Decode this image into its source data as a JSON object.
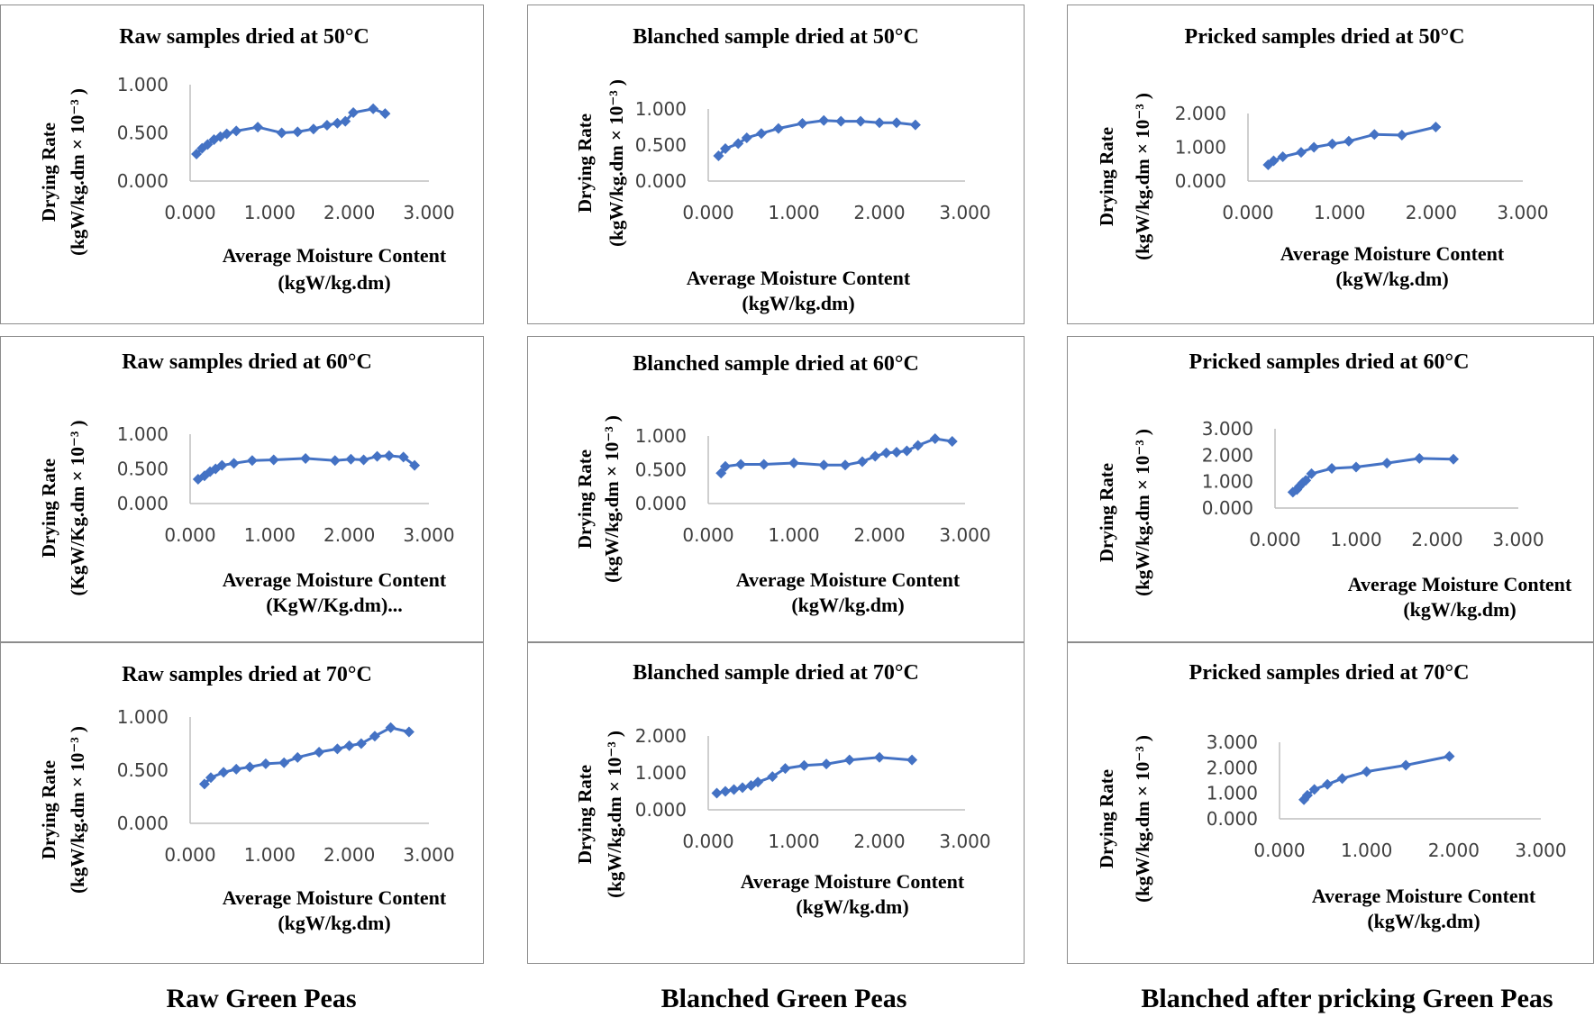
{
  "colors": {
    "series": "#4472c4",
    "axis": "#bfbfbf",
    "text": "#404040"
  },
  "footer": {
    "col1": "Raw Green Peas",
    "col2": "Blanched Green Peas",
    "col3": "Blanched after pricking Green Peas"
  },
  "chart_data": [
    {
      "type": "line",
      "title": "Raw samples dried at 50°C",
      "xlabel": [
        "Average Moisture Content",
        "(kgW/kg.dm)"
      ],
      "ylabel": [
        "Drying Rate",
        "(kgW/kg.dm × 10⁻³ )"
      ],
      "xticks": [
        "0.000",
        "1.000",
        "2.000",
        "3.000"
      ],
      "yticks": [
        "0.000",
        "0.500",
        "1.000"
      ],
      "xlim": [
        0,
        3
      ],
      "ylim": [
        0,
        1
      ],
      "x": [
        0.08,
        0.15,
        0.22,
        0.3,
        0.38,
        0.46,
        0.58,
        0.85,
        1.15,
        1.35,
        1.55,
        1.72,
        1.85,
        1.95,
        2.05,
        2.3,
        2.45
      ],
      "y": [
        0.28,
        0.34,
        0.38,
        0.43,
        0.46,
        0.49,
        0.52,
        0.56,
        0.5,
        0.51,
        0.54,
        0.58,
        0.6,
        0.62,
        0.71,
        0.75,
        0.7
      ]
    },
    {
      "type": "line",
      "title": "Blanched sample dried at 50°C",
      "xlabel": [
        "Average Moisture Content",
        "(kgW/kg.dm)"
      ],
      "ylabel": [
        "Drying Rate",
        "(kgW/kg.dm × 10⁻³ )"
      ],
      "xticks": [
        "0.000",
        "1.000",
        "2.000",
        "3.000"
      ],
      "yticks": [
        "0.000",
        "0.500",
        "1.000"
      ],
      "xlim": [
        0,
        3
      ],
      "ylim": [
        0,
        1
      ],
      "x": [
        0.12,
        0.2,
        0.35,
        0.45,
        0.62,
        0.82,
        1.1,
        1.35,
        1.55,
        1.78,
        2.0,
        2.2,
        2.42
      ],
      "y": [
        0.35,
        0.45,
        0.52,
        0.6,
        0.66,
        0.73,
        0.8,
        0.84,
        0.83,
        0.83,
        0.81,
        0.81,
        0.78
      ]
    },
    {
      "type": "line",
      "title": "Pricked samples dried at 50°C",
      "xlabel": [
        "Average Moisture Content",
        "(kgW/kg.dm)"
      ],
      "ylabel": [
        "Drying Rate",
        "(kgW/kg.dm × 10⁻³ )"
      ],
      "xticks": [
        "0.000",
        "1.000",
        "2.000",
        "3.000"
      ],
      "yticks": [
        "0.000",
        "1.000",
        "2.000"
      ],
      "xlim": [
        0,
        3
      ],
      "ylim": [
        0,
        2
      ],
      "x": [
        0.22,
        0.28,
        0.38,
        0.58,
        0.72,
        0.92,
        1.1,
        1.38,
        1.68,
        2.05
      ],
      "y": [
        0.48,
        0.6,
        0.72,
        0.85,
        1.0,
        1.1,
        1.18,
        1.38,
        1.36,
        1.6
      ]
    },
    {
      "type": "line",
      "title": "Raw samples dried at 60°C",
      "xlabel": [
        "Average Moisture Content",
        "(KgW/Kg.dm)..."
      ],
      "ylabel": [
        "Drying Rate",
        "(KgW/Kg.dm × 10⁻³ )"
      ],
      "xticks": [
        "0.000",
        "1.000",
        "2.000",
        "3.000"
      ],
      "yticks": [
        "0.000",
        "0.500",
        "1.000"
      ],
      "xlim": [
        0,
        3
      ],
      "ylim": [
        0,
        1
      ],
      "x": [
        0.1,
        0.18,
        0.25,
        0.32,
        0.4,
        0.55,
        0.78,
        1.05,
        1.45,
        1.82,
        2.02,
        2.18,
        2.35,
        2.5,
        2.68,
        2.82
      ],
      "y": [
        0.35,
        0.4,
        0.46,
        0.5,
        0.55,
        0.58,
        0.62,
        0.63,
        0.65,
        0.62,
        0.64,
        0.63,
        0.68,
        0.69,
        0.67,
        0.55
      ]
    },
    {
      "type": "line",
      "title": "Blanched sample dried at 60°C",
      "xlabel": [
        "Average Moisture Content",
        "(kgW/kg.dm)"
      ],
      "ylabel": [
        "Drying Rate",
        "(kgW/kg.dm × 10⁻³ )"
      ],
      "xticks": [
        "0.000",
        "1.000",
        "2.000",
        "3.000"
      ],
      "yticks": [
        "0.000",
        "0.500",
        "1.000"
      ],
      "xlim": [
        0,
        3
      ],
      "ylim": [
        0,
        1
      ],
      "x": [
        0.15,
        0.2,
        0.38,
        0.65,
        1.0,
        1.35,
        1.6,
        1.8,
        1.95,
        2.08,
        2.2,
        2.32,
        2.45,
        2.65,
        2.85
      ],
      "y": [
        0.45,
        0.55,
        0.58,
        0.58,
        0.6,
        0.57,
        0.57,
        0.62,
        0.7,
        0.75,
        0.76,
        0.78,
        0.86,
        0.96,
        0.92
      ]
    },
    {
      "type": "line",
      "title": "Pricked samples dried at 60°C",
      "xlabel": [
        "Average Moisture Content",
        "(kgW/kg.dm)"
      ],
      "ylabel": [
        "Drying Rate",
        "(kgW/kg.dm × 10⁻³ )"
      ],
      "xticks": [
        "0.000",
        "1.000",
        "2.000",
        "3.000"
      ],
      "yticks": [
        "0.000",
        "1.000",
        "2.000",
        "3.000"
      ],
      "xlim": [
        0,
        3
      ],
      "ylim": [
        0,
        3
      ],
      "x": [
        0.22,
        0.27,
        0.3,
        0.34,
        0.38,
        0.45,
        0.7,
        1.0,
        1.38,
        1.78,
        2.2
      ],
      "y": [
        0.6,
        0.7,
        0.82,
        0.95,
        1.05,
        1.3,
        1.5,
        1.55,
        1.7,
        1.88,
        1.85
      ]
    },
    {
      "type": "line",
      "title": "Raw samples dried at 70°C",
      "xlabel": [
        "Average Moisture Content",
        "(kgW/kg.dm)"
      ],
      "ylabel": [
        "Drying Rate",
        "(kgW/kg.dm × 10⁻³ )"
      ],
      "xticks": [
        "0.000",
        "1.000",
        "2.000",
        "3.000"
      ],
      "yticks": [
        "0.000",
        "0.500",
        "1.000"
      ],
      "xlim": [
        0,
        3
      ],
      "ylim": [
        0,
        1
      ],
      "x": [
        0.18,
        0.26,
        0.42,
        0.58,
        0.75,
        0.95,
        1.18,
        1.35,
        1.62,
        1.85,
        2.0,
        2.15,
        2.32,
        2.52,
        2.75
      ],
      "y": [
        0.37,
        0.43,
        0.48,
        0.51,
        0.53,
        0.56,
        0.57,
        0.62,
        0.67,
        0.7,
        0.73,
        0.75,
        0.82,
        0.9,
        0.86
      ]
    },
    {
      "type": "line",
      "title": "Blanched sample dried at 70°C",
      "xlabel": [
        "Average Moisture Content",
        "(kgW/kg.dm)"
      ],
      "ylabel": [
        "Drying Rate",
        "(kgW/kg.dm × 10⁻³ )"
      ],
      "xticks": [
        "0.000",
        "1.000",
        "2.000",
        "3.000"
      ],
      "yticks": [
        "0.000",
        "1.000",
        "2.000"
      ],
      "xlim": [
        0,
        3
      ],
      "ylim": [
        0,
        2
      ],
      "x": [
        0.1,
        0.2,
        0.3,
        0.4,
        0.5,
        0.58,
        0.75,
        0.9,
        1.12,
        1.38,
        1.65,
        2.0,
        2.38
      ],
      "y": [
        0.45,
        0.5,
        0.55,
        0.6,
        0.66,
        0.75,
        0.9,
        1.12,
        1.2,
        1.24,
        1.35,
        1.42,
        1.35
      ]
    },
    {
      "type": "line",
      "title": "Pricked samples dried at 70°C",
      "xlabel": [
        "Average Moisture Content",
        "(kgW/kg.dm)"
      ],
      "ylabel": [
        "Drying Rate",
        "(kgW/kg.dm × 10⁻³ )"
      ],
      "xticks": [
        "0.000",
        "1.000",
        "2.000",
        "3.000"
      ],
      "yticks": [
        "0.000",
        "1.000",
        "2.000",
        "3.000"
      ],
      "xlim": [
        0,
        3
      ],
      "ylim": [
        0,
        3
      ],
      "x": [
        0.28,
        0.32,
        0.4,
        0.55,
        0.72,
        1.0,
        1.45,
        1.95
      ],
      "y": [
        0.75,
        0.92,
        1.15,
        1.35,
        1.58,
        1.85,
        2.1,
        2.45
      ]
    }
  ]
}
